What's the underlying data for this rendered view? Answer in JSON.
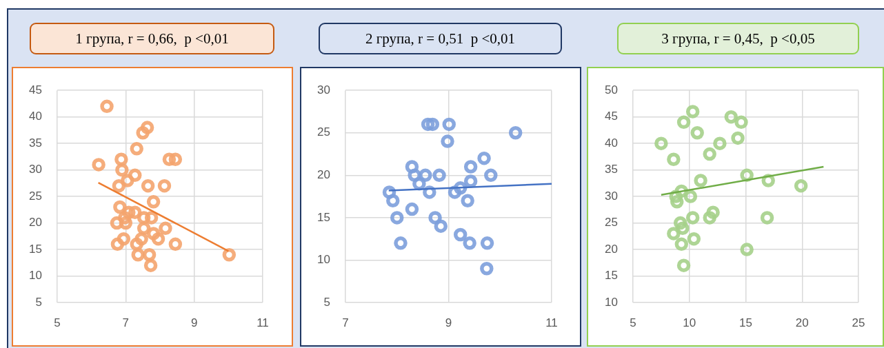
{
  "chart_data": [
    {
      "type": "scatter",
      "title": "1 група, r = 0,66,  p <0,01",
      "marker": "circle",
      "grid": true,
      "xlim": [
        5,
        11
      ],
      "xticks": [
        5,
        7,
        9,
        11
      ],
      "ylim": [
        5,
        45
      ],
      "yticks": [
        5,
        10,
        15,
        20,
        25,
        30,
        35,
        40,
        45
      ],
      "series": [
        {
          "type": "scatter",
          "color": "#f4a46e",
          "x": [
            6.45,
            7.63,
            7.5,
            7.32,
            6.21,
            6.87,
            8.27,
            8.45,
            6.89,
            7.27,
            7.05,
            6.8,
            7.65,
            8.13,
            7.81,
            6.83,
            7.09,
            7.27,
            6.97,
            6.74,
            7.0,
            7.53,
            7.75,
            7.53,
            8.16,
            7.81,
            7.95,
            7.46,
            6.94,
            6.76,
            7.32,
            8.45,
            7.36,
            7.69,
            7.73,
            10.02
          ],
          "values": [
            42,
            38,
            37,
            34,
            31,
            32,
            32,
            32,
            30,
            29,
            28,
            27,
            27,
            27,
            24,
            23,
            22,
            22,
            21,
            20,
            20,
            21,
            21,
            19,
            19,
            18,
            17,
            17,
            17,
            16,
            16,
            16,
            14,
            14,
            12,
            14
          ]
        },
        {
          "type": "line",
          "marker": "none",
          "color": "#ed7d31",
          "x": [
            6.2,
            10.0
          ],
          "values": [
            27.6,
            14.7
          ]
        }
      ]
    },
    {
      "type": "scatter",
      "title": "2 група, r = 0,51  p <0,01",
      "marker": "circle",
      "grid": true,
      "xlim": [
        7,
        11
      ],
      "xticks": [
        7,
        9,
        11
      ],
      "ylim": [
        5,
        30
      ],
      "yticks": [
        5,
        10,
        15,
        20,
        25,
        30
      ],
      "series": [
        {
          "type": "scatter",
          "color": "#7c9fdc",
          "x": [
            8.6,
            8.69,
            9.01,
            8.98,
            10.3,
            9.69,
            8.29,
            9.43,
            8.34,
            8.55,
            8.82,
            9.82,
            8.43,
            9.43,
            7.85,
            8.63,
            9.12,
            9.23,
            7.92,
            9.37,
            8.29,
            8.0,
            8.74,
            8.85,
            9.23,
            8.07,
            9.41,
            9.75,
            9.74
          ],
          "values": [
            26,
            26,
            26,
            24,
            25,
            22,
            21,
            21,
            20,
            20,
            20,
            20,
            19,
            19.3,
            18,
            18,
            18,
            18.5,
            17,
            17,
            16,
            15,
            15,
            14,
            13,
            12,
            12,
            12,
            9
          ]
        },
        {
          "type": "line",
          "marker": "none",
          "color": "#4472c4",
          "x": [
            7.84,
            11
          ],
          "values": [
            18.2,
            19.0
          ]
        }
      ]
    },
    {
      "type": "scatter",
      "title": "3 група, r = 0,45,  p <0,05",
      "marker": "circle",
      "grid": true,
      "xlim": [
        5,
        25
      ],
      "xticks": [
        5,
        10,
        15,
        20,
        25
      ],
      "ylim": [
        10,
        50
      ],
      "yticks": [
        10,
        15,
        20,
        25,
        30,
        35,
        40,
        45,
        50
      ],
      "series": [
        {
          "type": "scatter",
          "color": "#a5d08a",
          "x": [
            7.5,
            8.6,
            9.5,
            10.3,
            10.7,
            13.7,
            14.6,
            14.3,
            12.7,
            11.8,
            15.1,
            11.0,
            17.0,
            19.9,
            9.3,
            8.8,
            10.1,
            8.9,
            9.2,
            10.3,
            11.8,
            12.1,
            16.9,
            9.4,
            8.6,
            10.4,
            9.3,
            15.1,
            9.5
          ],
          "values": [
            40,
            37,
            44,
            46,
            42,
            45,
            44,
            41,
            40,
            38,
            34,
            33,
            33,
            32,
            31,
            30,
            30,
            29,
            25,
            26,
            26,
            27,
            26,
            24,
            23,
            22,
            21,
            20,
            17
          ]
        },
        {
          "type": "line",
          "marker": "none",
          "color": "#70ad47",
          "x": [
            7.5,
            21.9
          ],
          "values": [
            30.3,
            35.6
          ]
        }
      ]
    }
  ]
}
